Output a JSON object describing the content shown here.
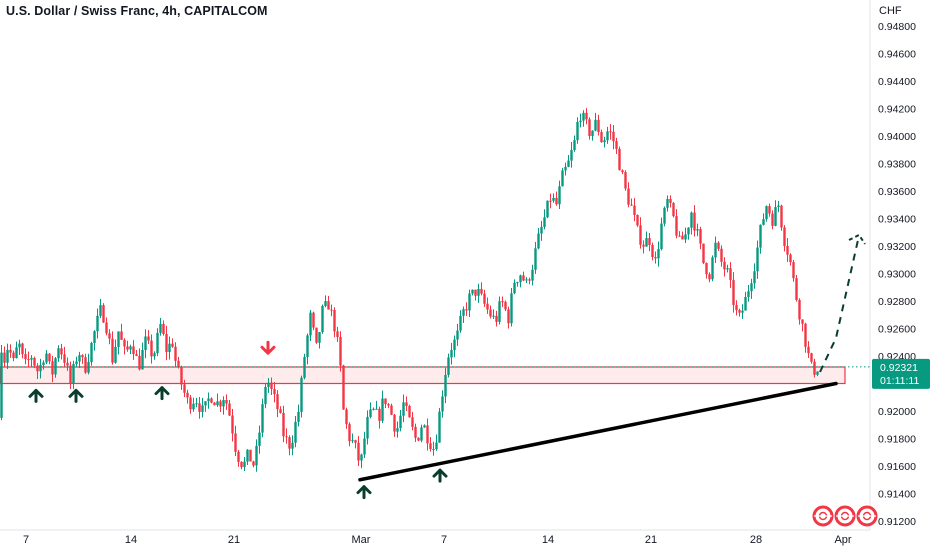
{
  "header": {
    "title": "U.S. Dollar / Swiss Franc, 4h, CAPITALCOM",
    "currency": "CHF"
  },
  "price_tag": {
    "price": "0.92321",
    "countdown": "01:11:11"
  },
  "colors": {
    "up": "#089981",
    "down": "#f23645",
    "zone": "#f23645",
    "price_tag": "#089981",
    "trendline": "#000000",
    "arrow_up": "#0b3d2e",
    "arrow_down": "#f23645"
  },
  "icons": [
    "up-arrow-icon",
    "down-arrow-icon",
    "lifebuoy-icon"
  ],
  "chart_data": {
    "type": "candlestick",
    "title": "U.S. Dollar / Swiss Franc, 4h, CAPITALCOM",
    "x_ticks": [
      "7",
      "14",
      "21",
      "Mar",
      "7",
      "14",
      "21",
      "28",
      "Apr"
    ],
    "y_ticks": [
      0.948,
      0.946,
      0.944,
      0.942,
      0.94,
      0.938,
      0.936,
      0.934,
      0.932,
      0.93,
      0.928,
      0.926,
      0.924,
      0.922,
      0.92,
      0.918,
      0.916,
      0.914,
      0.912
    ],
    "ylim": [
      0.9112,
      0.9492
    ],
    "last_price": 0.92321,
    "support_zone": [
      0.922,
      0.9232
    ],
    "trendline": {
      "from": [
        "Mar 1",
        0.915
      ],
      "to": [
        "Mar 30",
        0.922
      ]
    },
    "projection": {
      "from": [
        "Mar 30",
        0.9225
      ],
      "to": [
        "Apr 1",
        0.933
      ]
    },
    "waypoints": [
      [
        0,
        0.9195
      ],
      [
        3,
        0.9248
      ],
      [
        7,
        0.9235
      ],
      [
        10,
        0.9252
      ],
      [
        14,
        0.9232
      ],
      [
        20,
        0.925
      ],
      [
        26,
        0.9232
      ],
      [
        33,
        0.924
      ],
      [
        40,
        0.9228
      ],
      [
        47,
        0.9245
      ],
      [
        53,
        0.9225
      ],
      [
        60,
        0.9248
      ],
      [
        66,
        0.9238
      ],
      [
        72,
        0.922
      ],
      [
        80,
        0.9245
      ],
      [
        86,
        0.923
      ],
      [
        93,
        0.9248
      ],
      [
        97,
        0.926
      ],
      [
        103,
        0.9275
      ],
      [
        108,
        0.9262
      ],
      [
        114,
        0.9238
      ],
      [
        120,
        0.9258
      ],
      [
        127,
        0.924
      ],
      [
        133,
        0.9252
      ],
      [
        140,
        0.9232
      ],
      [
        147,
        0.925
      ],
      [
        155,
        0.924
      ],
      [
        162,
        0.9262
      ],
      [
        168,
        0.9245
      ],
      [
        174,
        0.925
      ],
      [
        178,
        0.9232
      ],
      [
        185,
        0.9215
      ],
      [
        190,
        0.9205
      ],
      [
        197,
        0.921
      ],
      [
        205,
        0.9198
      ],
      [
        212,
        0.9212
      ],
      [
        220,
        0.9205
      ],
      [
        226,
        0.9212
      ],
      [
        232,
        0.9195
      ],
      [
        238,
        0.917
      ],
      [
        245,
        0.916
      ],
      [
        250,
        0.9168
      ],
      [
        256,
        0.916
      ],
      [
        262,
        0.919
      ],
      [
        268,
        0.9225
      ],
      [
        274,
        0.9212
      ],
      [
        280,
        0.92
      ],
      [
        286,
        0.918
      ],
      [
        292,
        0.9175
      ],
      [
        300,
        0.92
      ],
      [
        306,
        0.924
      ],
      [
        312,
        0.9268
      ],
      [
        318,
        0.9245
      ],
      [
        324,
        0.9272
      ],
      [
        330,
        0.9278
      ],
      [
        336,
        0.9262
      ],
      [
        341,
        0.924
      ],
      [
        345,
        0.92
      ],
      [
        350,
        0.9182
      ],
      [
        356,
        0.9175
      ],
      [
        362,
        0.916
      ],
      [
        368,
        0.919
      ],
      [
        374,
        0.92
      ],
      [
        380,
        0.9195
      ],
      [
        386,
        0.921
      ],
      [
        392,
        0.92
      ],
      [
        398,
        0.9185
      ],
      [
        405,
        0.9205
      ],
      [
        412,
        0.919
      ],
      [
        418,
        0.9178
      ],
      [
        424,
        0.9192
      ],
      [
        430,
        0.918
      ],
      [
        436,
        0.9172
      ],
      [
        441,
        0.9198
      ],
      [
        446,
        0.9225
      ],
      [
        451,
        0.9245
      ],
      [
        458,
        0.9252
      ],
      [
        464,
        0.927
      ],
      [
        471,
        0.9282
      ],
      [
        478,
        0.9288
      ],
      [
        484,
        0.928
      ],
      [
        490,
        0.9272
      ],
      [
        497,
        0.9265
      ],
      [
        503,
        0.928
      ],
      [
        510,
        0.9268
      ],
      [
        516,
        0.9295
      ],
      [
        522,
        0.93
      ],
      [
        528,
        0.9292
      ],
      [
        534,
        0.9306
      ],
      [
        540,
        0.9325
      ],
      [
        546,
        0.934
      ],
      [
        552,
        0.9355
      ],
      [
        558,
        0.935
      ],
      [
        564,
        0.937
      ],
      [
        570,
        0.938
      ],
      [
        576,
        0.9395
      ],
      [
        581,
        0.9418
      ],
      [
        586,
        0.941
      ],
      [
        592,
        0.9402
      ],
      [
        598,
        0.941
      ],
      [
        604,
        0.9395
      ],
      [
        610,
        0.9405
      ],
      [
        616,
        0.9395
      ],
      [
        621,
        0.938
      ],
      [
        627,
        0.936
      ],
      [
        633,
        0.9348
      ],
      [
        639,
        0.933
      ],
      [
        645,
        0.9322
      ],
      [
        651,
        0.9325
      ],
      [
        657,
        0.9308
      ],
      [
        663,
        0.9335
      ],
      [
        669,
        0.9352
      ],
      [
        675,
        0.934
      ],
      [
        681,
        0.9322
      ],
      [
        687,
        0.9328
      ],
      [
        693,
        0.9345
      ],
      [
        699,
        0.9328
      ],
      [
        705,
        0.9308
      ],
      [
        711,
        0.93
      ],
      [
        717,
        0.932
      ],
      [
        723,
        0.9308
      ],
      [
        729,
        0.93
      ],
      [
        735,
        0.928
      ],
      [
        740,
        0.9265
      ],
      [
        746,
        0.9278
      ],
      [
        752,
        0.9295
      ],
      [
        757,
        0.931
      ],
      [
        763,
        0.9335
      ],
      [
        768,
        0.935
      ],
      [
        774,
        0.934
      ],
      [
        780,
        0.935
      ],
      [
        786,
        0.9325
      ],
      [
        791,
        0.9312
      ],
      [
        796,
        0.929
      ],
      [
        801,
        0.9272
      ],
      [
        806,
        0.9255
      ],
      [
        810,
        0.924
      ],
      [
        814,
        0.9228
      ],
      [
        818,
        0.9232
      ]
    ],
    "annotations": {
      "up_arrows": [
        {
          "x": 36,
          "y": 0.9215
        },
        {
          "x": 76,
          "y": 0.9215
        },
        {
          "x": 162,
          "y": 0.9217
        },
        {
          "x": 364,
          "y": 0.9145
        },
        {
          "x": 440,
          "y": 0.9157
        }
      ],
      "down_arrows": [
        {
          "x": 268,
          "y": 0.9242
        }
      ]
    }
  }
}
